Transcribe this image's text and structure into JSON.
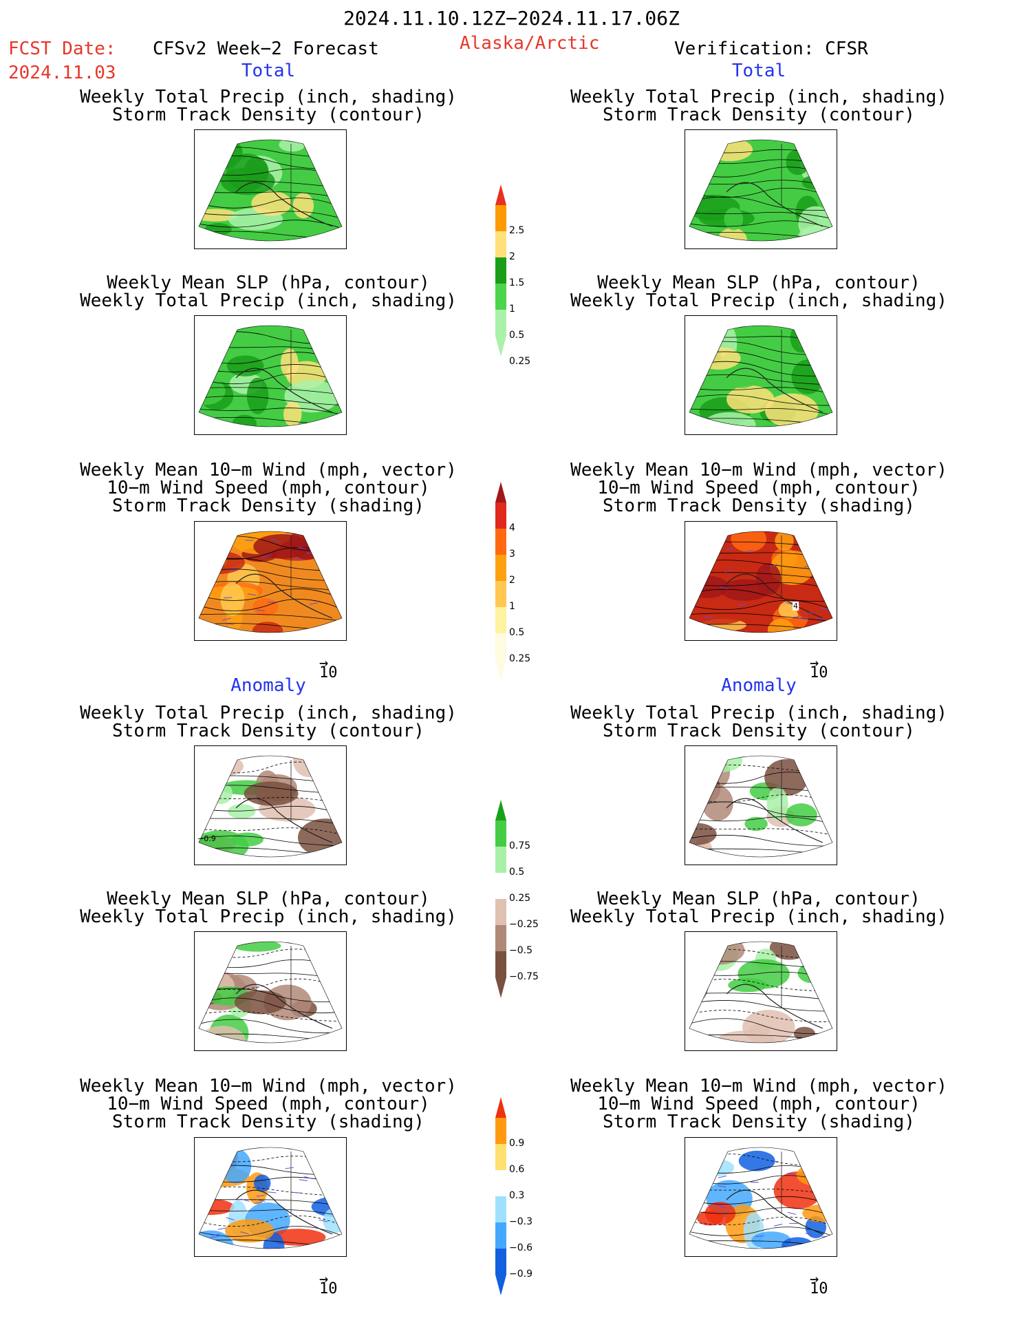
{
  "header": {
    "date_range": "2024.11.10.12Z−2024.11.17.06Z",
    "fcst_date_label": "FCST Date:",
    "fcst_date_value": "2024.11.03",
    "forecast_title": "CFSv2 Week−2 Forecast",
    "region": "Alaska/Arctic",
    "verification": "Verification: CFSR"
  },
  "sections": {
    "total": "Total",
    "anomaly": "Anomaly"
  },
  "panel_titles": {
    "precip_storm": [
      "Weekly Total Precip (inch, shading)",
      "Storm Track Density (contour)"
    ],
    "slp_precip": [
      "Weekly Mean SLP (hPa, contour)",
      "Weekly Total Precip (inch, shading)"
    ],
    "wind_storm": [
      "Weekly Mean 10−m Wind (mph, vector)",
      "10−m Wind Speed (mph, contour)",
      "Storm Track Density (shading)"
    ]
  },
  "vector_scale_label": "10",
  "colorbars": {
    "precip_total": {
      "labels": [
        "2.5",
        "2",
        "1.5",
        "1",
        "0.5",
        "0.25"
      ],
      "colors": [
        "#e8301e",
        "#ff9900",
        "#ffe07a",
        "#1a9e1a",
        "#4cd44c",
        "#aaf2aa"
      ]
    },
    "storm_total": {
      "labels": [
        "4",
        "3",
        "2",
        "1",
        "0.5",
        "0.25"
      ],
      "colors": [
        "#a01818",
        "#e0281e",
        "#ff6a10",
        "#ffa010",
        "#ffc850",
        "#fff2a0",
        "#fffbe0"
      ]
    },
    "precip_anom": {
      "labels": [
        "0.75",
        "0.5",
        "0.25",
        "−0.25",
        "−0.5",
        "−0.75"
      ],
      "colors": [
        "#1aa01a",
        "#44cc44",
        "#a8f0a8",
        "#ffffff",
        "#e0c0b0",
        "#b08878",
        "#7a5040"
      ]
    },
    "storm_anom": {
      "labels": [
        "0.9",
        "0.6",
        "0.3",
        "−0.3",
        "−0.6",
        "−0.9"
      ],
      "colors": [
        "#f03010",
        "#ff9a10",
        "#ffe070",
        "#ffffff",
        "#a0e0ff",
        "#44a8ff",
        "#1060e0"
      ]
    }
  },
  "contour_labels": {
    "anom_precip_fcst": "−0.9",
    "wind_total_cfsr": "4"
  },
  "panel_fills": {
    "p1": "#44cc44",
    "p2": "#44cc44",
    "p3": "#f08a20",
    "p4": "#44cc44",
    "p5": "#44cc44",
    "p6": "#c82a14",
    "a1": "#ffffff",
    "a2": "#ffffff",
    "a3": "#ffffff",
    "a4": "#ffffff",
    "a5": "#ffffff",
    "a6": "#ffffff"
  }
}
